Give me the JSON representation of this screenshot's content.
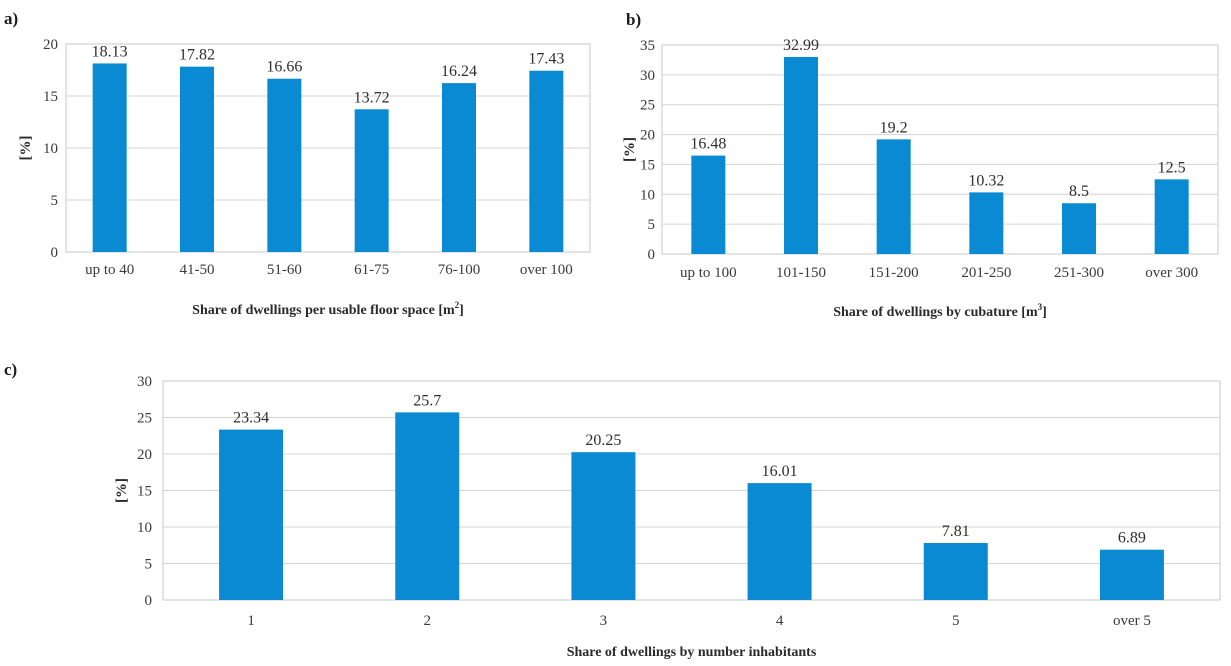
{
  "chart_data": [
    {
      "type": "bar",
      "panel_label": "a)",
      "categories": [
        "up to 40",
        "41-50",
        "51-60",
        "61-75",
        "76-100",
        "over 100"
      ],
      "values": [
        18.13,
        17.82,
        16.66,
        13.72,
        16.24,
        17.43
      ],
      "value_labels": [
        "18.13",
        "17.82",
        "16.66",
        "13.72",
        "16.24",
        "17.43"
      ],
      "xlabel_main": "Share of dwellings per usable floor space [m",
      "xlabel_sup": "2",
      "xlabel_end": "]",
      "ylabel": "[%]",
      "ylim": [
        0,
        20
      ],
      "yticks": [
        0,
        5,
        10,
        15,
        20
      ],
      "grid": true,
      "bar_color": "#0a8ad2"
    },
    {
      "type": "bar",
      "panel_label": "b)",
      "categories": [
        "up to 100",
        "101-150",
        "151-200",
        "201-250",
        "251-300",
        "over 300"
      ],
      "values": [
        16.48,
        32.99,
        19.2,
        10.32,
        8.5,
        12.5
      ],
      "value_labels": [
        "16.48",
        "32.99",
        "19.2",
        "10.32",
        "8.5",
        "12.5"
      ],
      "xlabel_main": "Share of dwellings by cubature [m",
      "xlabel_sup": "3",
      "xlabel_end": "]",
      "ylabel": "[%]",
      "ylim": [
        0,
        35
      ],
      "yticks": [
        0,
        5,
        10,
        15,
        20,
        25,
        30,
        35
      ],
      "grid": true,
      "bar_color": "#0a8ad2"
    },
    {
      "type": "bar",
      "panel_label": "c)",
      "categories": [
        "1",
        "2",
        "3",
        "4",
        "5",
        "over 5"
      ],
      "values": [
        23.34,
        25.7,
        20.25,
        16.01,
        7.81,
        6.89
      ],
      "value_labels": [
        "23.34",
        "25.7",
        "20.25",
        "16.01",
        "7.81",
        "6.89"
      ],
      "xlabel_main": "Share of dwellings by number inhabitants",
      "xlabel_sup": "",
      "xlabel_end": "",
      "ylabel": "[%]",
      "ylim": [
        0,
        30
      ],
      "yticks": [
        0,
        5,
        10,
        15,
        20,
        25,
        30
      ],
      "grid": true,
      "bar_color": "#0a8ad2"
    }
  ]
}
